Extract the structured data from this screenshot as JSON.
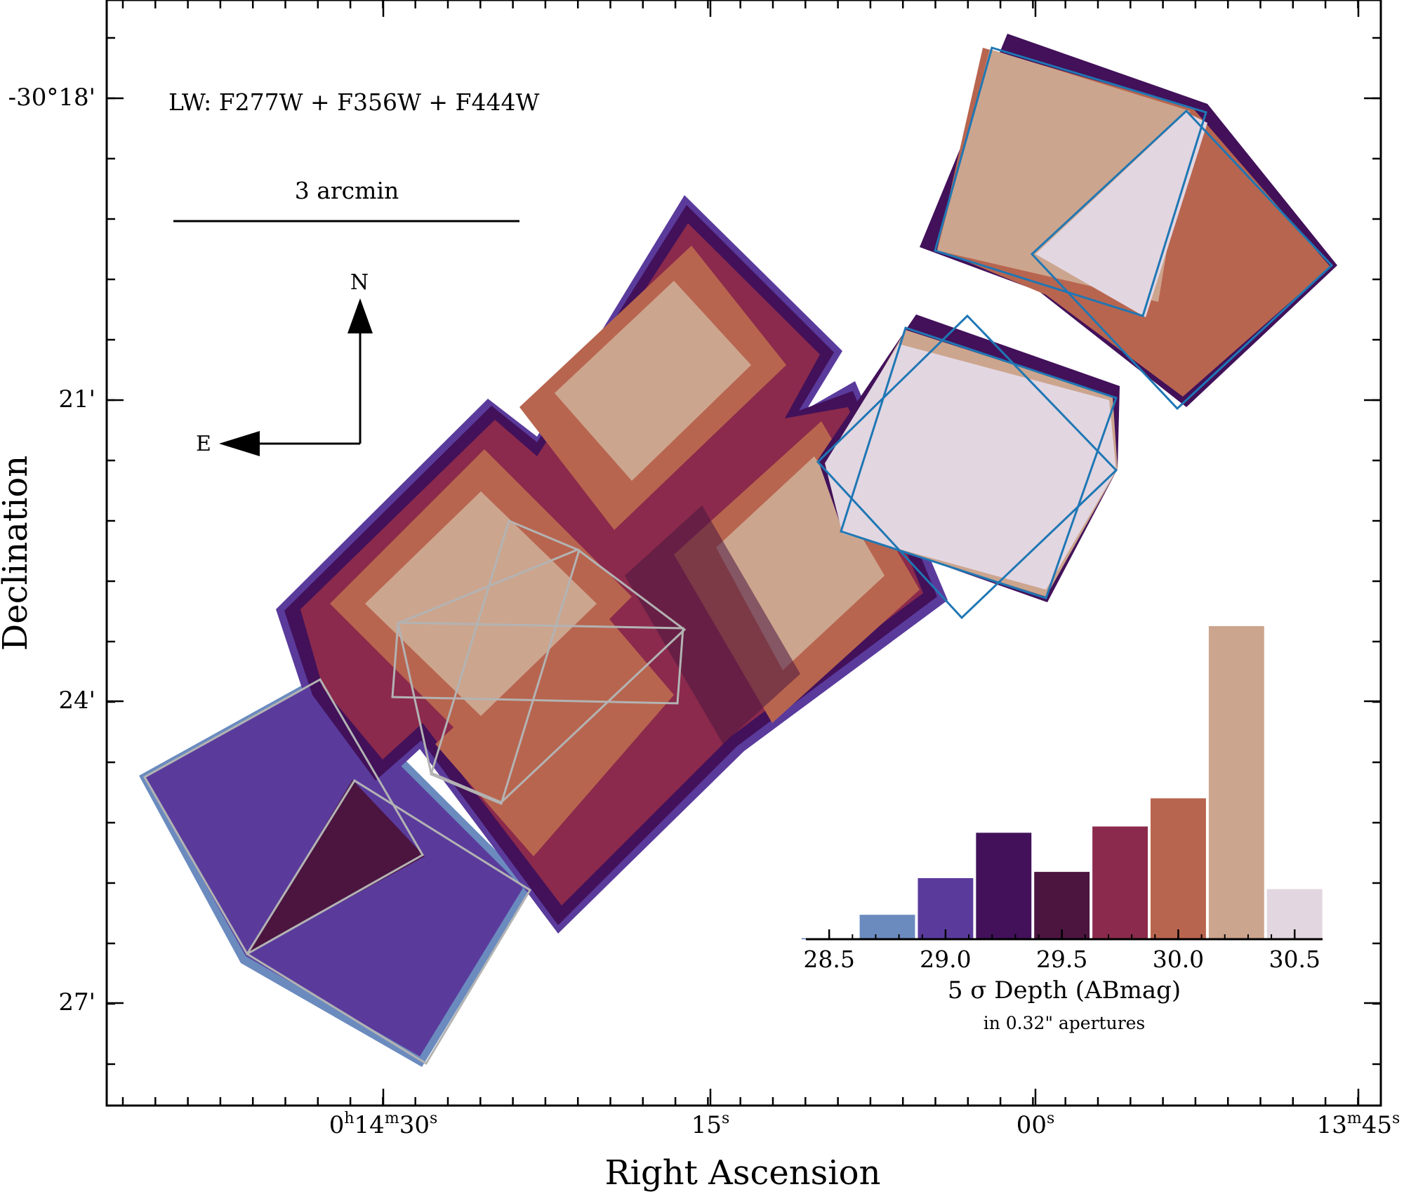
{
  "figure": {
    "xlabel": "Right Ascension",
    "ylabel": "Declination",
    "filter_label": "LW: F277W + F356W + F444W",
    "scalebar_label": "3 arcmin",
    "compass": {
      "north": "N",
      "east": "E"
    },
    "x_ticks": [
      {
        "h": "0",
        "m": "14",
        "s": "30"
      },
      {
        "h": "",
        "m": "",
        "s": "15"
      },
      {
        "h": "",
        "m": "",
        "s": "00"
      },
      {
        "h": "",
        "m": "13",
        "s": "45"
      }
    ],
    "y_ticks": [
      "-30°18'",
      "21'",
      "24'",
      "27'"
    ],
    "colors": {
      "pale": "#e2d6e1",
      "tan": "#cca58e",
      "salmon": "#b8654f",
      "rose": "#8b2a4c",
      "plum": "#4b1540",
      "indigo": "#42115a",
      "violet": "#5a3b9c",
      "lightblue": "#6b8bbf",
      "blue_outline": "#1f77b4",
      "grey_outline": "#b3b3b3"
    }
  },
  "chart_data": {
    "type": "bar",
    "title": "",
    "xlabel": "5 σ Depth (ABmag)",
    "xlabel_note": "in 0.32\" apertures",
    "ylabel": "",
    "x_ticks": [
      "28.5",
      "29.0",
      "29.5",
      "30.0",
      "30.5"
    ],
    "xlim": [
      28.5,
      30.5
    ],
    "bin_width": 0.25,
    "bins": [
      {
        "center": 28.5,
        "value": 0.3,
        "color": "#4a6fb0"
      },
      {
        "center": 28.75,
        "value": 7.8,
        "color": "#6b8bbf"
      },
      {
        "center": 29.0,
        "value": 19.5,
        "color": "#5a3b9c"
      },
      {
        "center": 29.25,
        "value": 34.0,
        "color": "#42115a"
      },
      {
        "center": 29.5,
        "value": 21.5,
        "color": "#4b1540"
      },
      {
        "center": 29.75,
        "value": 36.0,
        "color": "#8b2a4c"
      },
      {
        "center": 30.0,
        "value": 45.0,
        "color": "#b8654f"
      },
      {
        "center": 30.25,
        "value": 100.0,
        "color": "#cca58e"
      },
      {
        "center": 30.5,
        "value": 16.0,
        "color": "#e2d6e1"
      }
    ],
    "ylim": [
      0,
      100
    ]
  }
}
